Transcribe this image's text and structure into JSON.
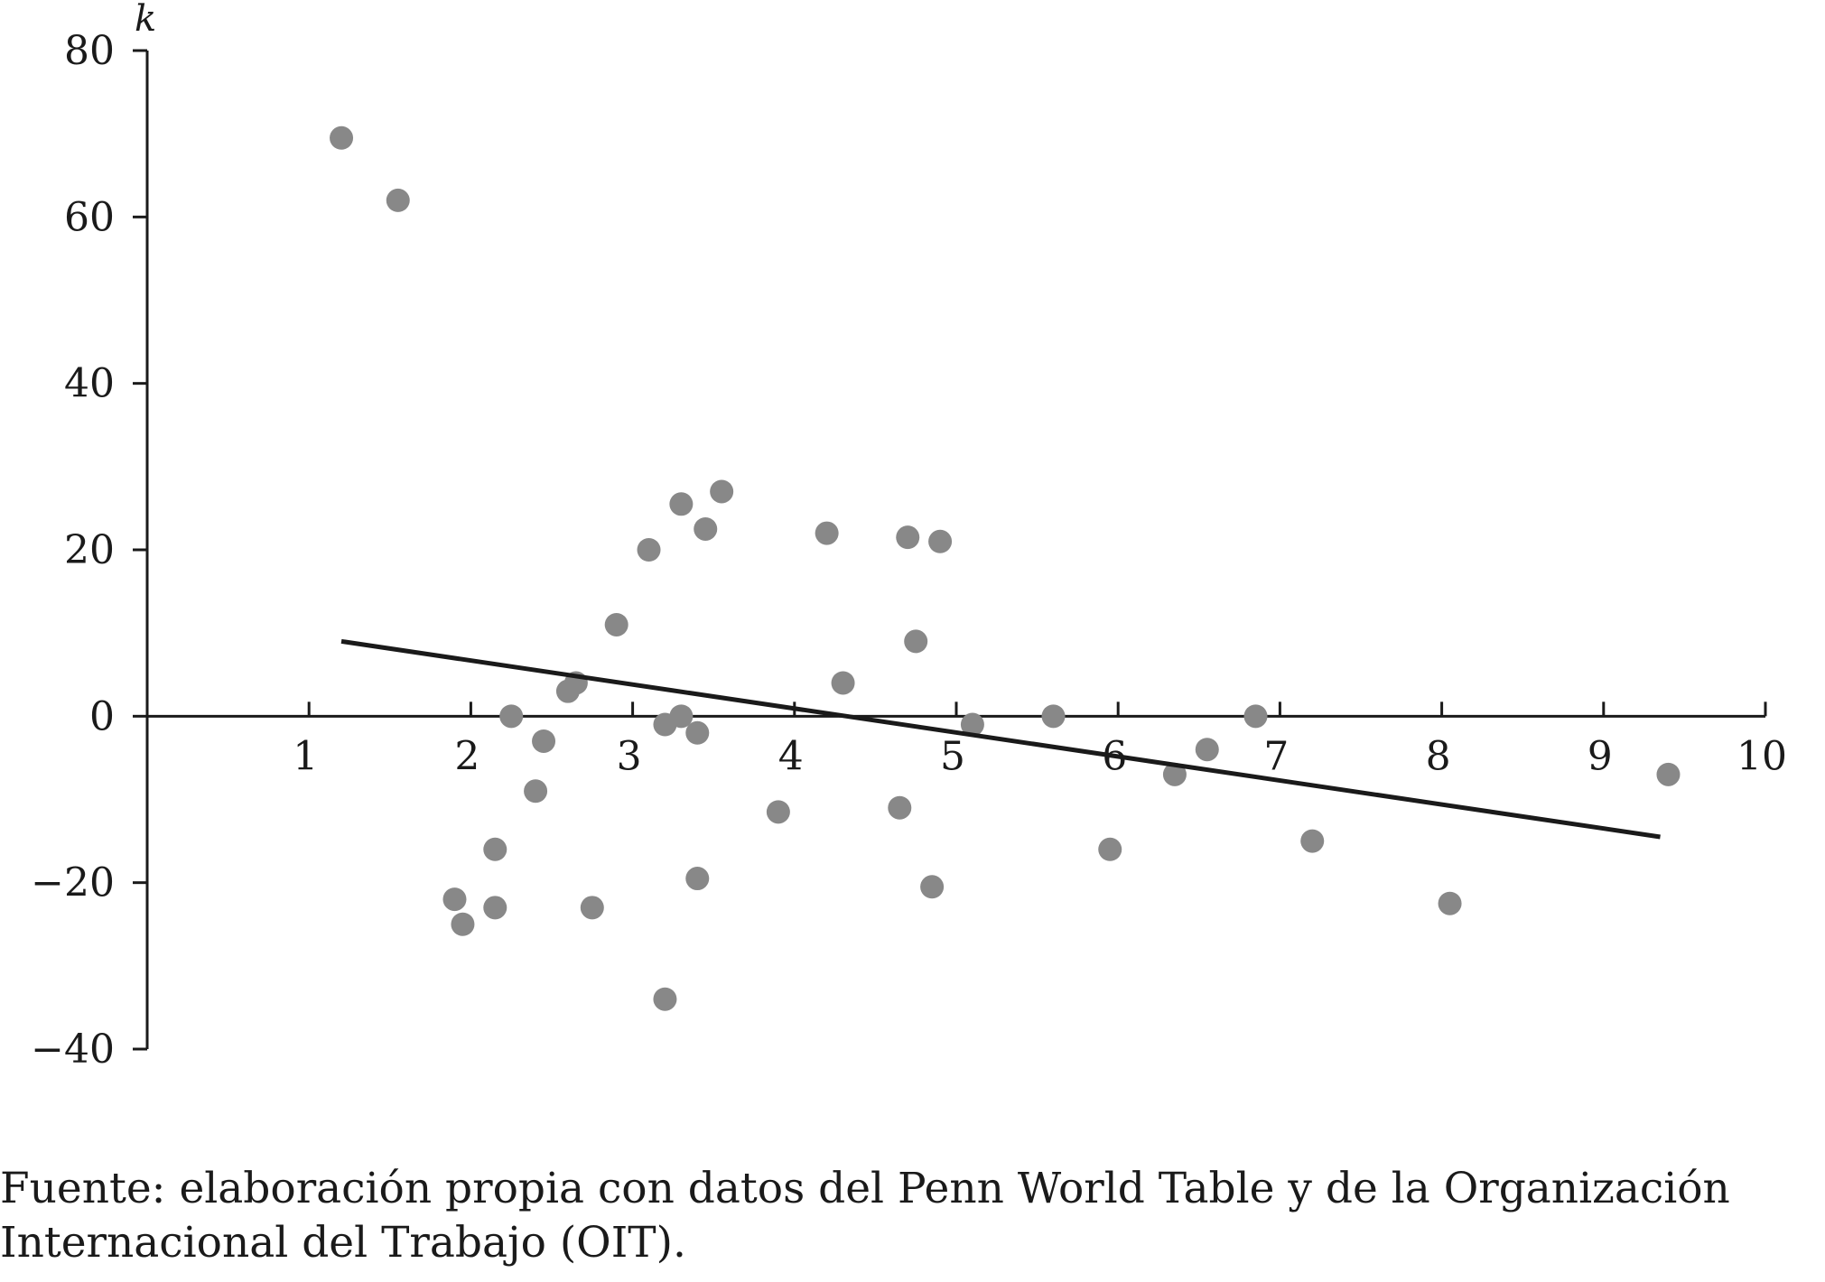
{
  "chart_data": {
    "type": "scatter",
    "ylabel": "k",
    "xlim": [
      0,
      10
    ],
    "ylim": [
      -40,
      80
    ],
    "x_ticks": [
      "1",
      "2",
      "3",
      "4",
      "5",
      "6",
      "7",
      "8",
      "9",
      "10"
    ],
    "y_ticks": [
      "80",
      "60",
      "40",
      "20",
      "0",
      "−20",
      "−40"
    ],
    "grid": false,
    "point_color": "#888888",
    "line_color": "#1a1a1a",
    "points": [
      {
        "x": 1.2,
        "y": 69.5
      },
      {
        "x": 1.55,
        "y": 62
      },
      {
        "x": 1.9,
        "y": -22
      },
      {
        "x": 1.95,
        "y": -25
      },
      {
        "x": 2.15,
        "y": -16
      },
      {
        "x": 2.15,
        "y": -23
      },
      {
        "x": 2.25,
        "y": 0
      },
      {
        "x": 2.4,
        "y": -9
      },
      {
        "x": 2.45,
        "y": -3
      },
      {
        "x": 2.6,
        "y": 3
      },
      {
        "x": 2.65,
        "y": 4
      },
      {
        "x": 2.75,
        "y": -23
      },
      {
        "x": 2.9,
        "y": 11
      },
      {
        "x": 3.1,
        "y": 20
      },
      {
        "x": 3.2,
        "y": -1
      },
      {
        "x": 3.2,
        "y": -34
      },
      {
        "x": 3.3,
        "y": 0
      },
      {
        "x": 3.3,
        "y": 25.5
      },
      {
        "x": 3.4,
        "y": -2
      },
      {
        "x": 3.4,
        "y": -19.5
      },
      {
        "x": 3.45,
        "y": 22.5
      },
      {
        "x": 3.55,
        "y": 27
      },
      {
        "x": 3.9,
        "y": -11.5
      },
      {
        "x": 4.2,
        "y": 22
      },
      {
        "x": 4.3,
        "y": 4
      },
      {
        "x": 4.65,
        "y": -11
      },
      {
        "x": 4.7,
        "y": 21.5
      },
      {
        "x": 4.75,
        "y": 9
      },
      {
        "x": 4.85,
        "y": -20.5
      },
      {
        "x": 4.9,
        "y": 21
      },
      {
        "x": 5.1,
        "y": -1
      },
      {
        "x": 5.6,
        "y": 0
      },
      {
        "x": 5.95,
        "y": -16
      },
      {
        "x": 6.35,
        "y": -7
      },
      {
        "x": 6.55,
        "y": -4
      },
      {
        "x": 6.85,
        "y": 0
      },
      {
        "x": 7.2,
        "y": -15
      },
      {
        "x": 8.05,
        "y": -22.5
      },
      {
        "x": 9.4,
        "y": -7
      }
    ],
    "trend_line": [
      {
        "x": 1.2,
        "y": 9
      },
      {
        "x": 9.35,
        "y": -14.5
      }
    ]
  },
  "source_lines": [
    "Fuente: elaboración propia con datos del Penn World Table y de la Organización",
    "Internacional del Trabajo (OIT)."
  ]
}
